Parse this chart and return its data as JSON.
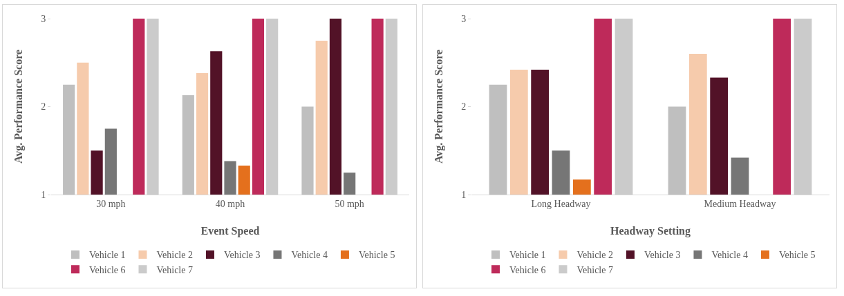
{
  "chart_data": [
    {
      "type": "bar",
      "xlabel": "Event Speed",
      "ylabel": "Avg. Performance Score",
      "categories": [
        "30 mph",
        "40 mph",
        "50 mph"
      ],
      "series": [
        {
          "name": "Vehicle 1",
          "color": "#bfbfbf",
          "values": [
            2.25,
            2.13,
            2.0
          ]
        },
        {
          "name": "Vehicle 2",
          "color": "#f6cbac",
          "values": [
            2.5,
            2.38,
            2.75
          ]
        },
        {
          "name": "Vehicle 3",
          "color": "#521227",
          "values": [
            1.5,
            2.63,
            3
          ]
        },
        {
          "name": "Vehicle 4",
          "color": "#767676",
          "values": [
            1.75,
            1.38,
            1.25
          ]
        },
        {
          "name": "Vehicle 5",
          "color": "#e4701d",
          "values": [
            null,
            1.33,
            null
          ]
        },
        {
          "name": "Vehicle 6",
          "color": "#be2a5a",
          "values": [
            3,
            3,
            3
          ]
        },
        {
          "name": "Vehicle 7",
          "color": "#cbcbcb",
          "values": [
            3,
            3,
            3
          ]
        }
      ],
      "ylim": [
        1,
        3
      ],
      "yticks": [
        1,
        2,
        3
      ],
      "grid": false,
      "legend": "bottom"
    },
    {
      "type": "bar",
      "xlabel": "Headway Setting",
      "ylabel": "Avg. Performance Score",
      "categories": [
        "Long Headway",
        "Medium Headway"
      ],
      "series": [
        {
          "name": "Vehicle 1",
          "color": "#bfbfbf",
          "values": [
            2.25,
            2.0
          ]
        },
        {
          "name": "Vehicle 2",
          "color": "#f6cbac",
          "values": [
            2.42,
            2.6
          ]
        },
        {
          "name": "Vehicle 3",
          "color": "#521227",
          "values": [
            2.42,
            2.33
          ]
        },
        {
          "name": "Vehicle 4",
          "color": "#767676",
          "values": [
            1.5,
            1.42
          ]
        },
        {
          "name": "Vehicle 5",
          "color": "#e4701d",
          "values": [
            1.17,
            null
          ]
        },
        {
          "name": "Vehicle 6",
          "color": "#be2a5a",
          "values": [
            3,
            3
          ]
        },
        {
          "name": "Vehicle 7",
          "color": "#cbcbcb",
          "values": [
            3,
            3
          ]
        }
      ],
      "ylim": [
        1,
        3
      ],
      "yticks": [
        1,
        2,
        3
      ],
      "grid": false,
      "legend": "bottom"
    }
  ]
}
